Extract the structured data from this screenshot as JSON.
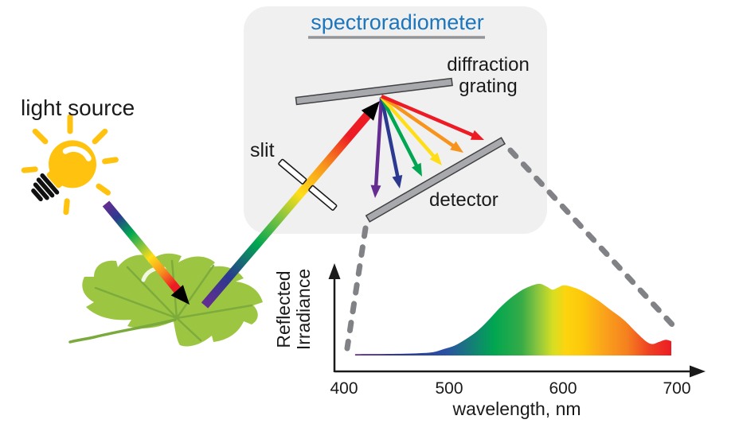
{
  "diagram": {
    "title": "spectroradiometer",
    "labels": {
      "light_source": "light source",
      "slit": "slit",
      "diffraction_grating": [
        "diffraction",
        "grating"
      ],
      "detector": "detector"
    }
  },
  "colors": {
    "title_blue": "#1b76bd",
    "box_fill": "#f0f0f1",
    "bar_fill": "#a7a9ac",
    "bar_stroke": "#414042",
    "dashed_gray": "#808285",
    "bulb_yellow": "#ffc20e",
    "leaf_green": "#9cc642",
    "ray_purple": "#662d91",
    "ray_blue": "#2b3990",
    "ray_green": "#00a651",
    "ray_yellow": "#ffde17",
    "ray_orange": "#f7941d",
    "ray_red": "#ed1c24"
  },
  "chart_data": {
    "type": "area",
    "title": "",
    "xlabel": "wavelength, nm",
    "ylabel": "Reflected Irradiance",
    "ylabel_lines": [
      "Reflected",
      "Irradiance"
    ],
    "x_ticks": [
      "400",
      "500",
      "600",
      "700"
    ],
    "x_range": [
      400,
      700
    ],
    "y_range": [
      0,
      1
    ],
    "grid": false,
    "legend": "none",
    "series": [
      {
        "name": "reflected irradiance",
        "x": [
          410,
          425,
          440,
          455,
          468,
          480,
          490,
          500,
          510,
          520,
          530,
          540,
          550,
          560,
          570,
          577,
          583,
          588,
          593,
          598,
          605,
          615,
          628,
          640,
          652,
          663,
          672,
          678,
          684,
          690,
          695
        ],
        "y": [
          0.02,
          0.021,
          0.022,
          0.026,
          0.032,
          0.045,
          0.09,
          0.14,
          0.23,
          0.34,
          0.49,
          0.66,
          0.8,
          0.91,
          0.98,
          1.0,
          0.96,
          0.92,
          0.95,
          0.98,
          0.96,
          0.9,
          0.78,
          0.64,
          0.5,
          0.33,
          0.2,
          0.16,
          0.19,
          0.22,
          0.2
        ]
      }
    ],
    "gradient_stops": [
      [
        410,
        "#662d91"
      ],
      [
        452,
        "#2b3990"
      ],
      [
        492,
        "#2b51a3"
      ],
      [
        535,
        "#00a651"
      ],
      [
        560,
        "#36ab47"
      ],
      [
        575,
        "#8dc63e"
      ],
      [
        588,
        "#d6de23"
      ],
      [
        600,
        "#fdd40e"
      ],
      [
        615,
        "#fdc70c"
      ],
      [
        635,
        "#faa21b"
      ],
      [
        655,
        "#f5801f"
      ],
      [
        675,
        "#ef4123"
      ],
      [
        695,
        "#ec1c24"
      ]
    ]
  }
}
